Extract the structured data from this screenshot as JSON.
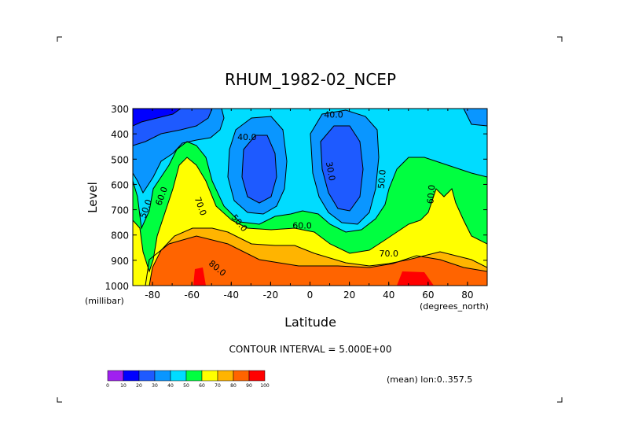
{
  "chart_data": {
    "type": "heatmap",
    "title": "RHUM_1982-02_NCEP",
    "xlabel": "Latitude",
    "ylabel": "Level",
    "x_unit": "(degrees_north)",
    "y_unit": "(millibar)",
    "xlim": [
      -90,
      90
    ],
    "ylim": [
      1000,
      300
    ],
    "x_ticks": [
      "-80",
      "-60",
      "-40",
      "-20",
      "0",
      "20",
      "40",
      "60",
      "80"
    ],
    "y_ticks": [
      "300",
      "400",
      "500",
      "600",
      "700",
      "800",
      "900",
      "1000"
    ],
    "contour_interval_text": "CONTOUR INTERVAL = 5.000E+00",
    "mean_text": "(mean) lon:0..357.5",
    "contour_labels": [
      {
        "text": "40.0",
        "x": -32,
        "y": 425,
        "rot": 0
      },
      {
        "text": "40.0",
        "x": 12,
        "y": 335,
        "rot": 0
      },
      {
        "text": "30.0",
        "x": 9,
        "y": 550,
        "rot": 80
      },
      {
        "text": "50.0",
        "x": 38,
        "y": 580,
        "rot": -85
      },
      {
        "text": "50.0",
        "x": -82,
        "y": 700,
        "rot": -70
      },
      {
        "text": "60.0",
        "x": -74,
        "y": 650,
        "rot": -70
      },
      {
        "text": "70.0",
        "x": -57,
        "y": 690,
        "rot": 70
      },
      {
        "text": "50.0",
        "x": -37,
        "y": 760,
        "rot": 50
      },
      {
        "text": "60.0",
        "x": -4,
        "y": 775,
        "rot": 0
      },
      {
        "text": "60.0",
        "x": 63,
        "y": 640,
        "rot": -85
      },
      {
        "text": "70.0",
        "x": 40,
        "y": 885,
        "rot": 0
      },
      {
        "text": "80.0",
        "x": -48,
        "y": 940,
        "rot": 40
      }
    ],
    "colorbar": {
      "levels": [
        "0",
        "10",
        "20",
        "30",
        "40",
        "50",
        "60",
        "70",
        "80",
        "90",
        "100"
      ],
      "colors": [
        "#a020f0",
        "#0000ff",
        "#1e5aff",
        "#0a96ff",
        "#00dcff",
        "#00ff40",
        "#ffff00",
        "#ffb400",
        "#ff6400",
        "#ff0000"
      ]
    }
  }
}
